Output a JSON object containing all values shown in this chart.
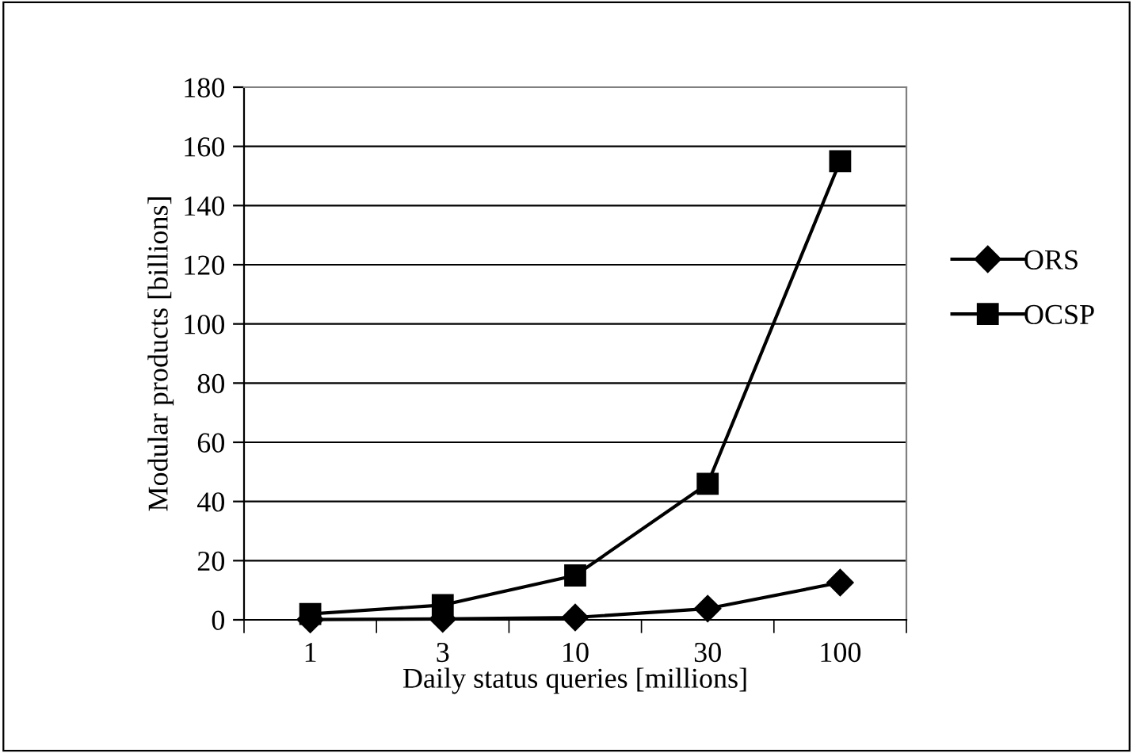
{
  "chart_data": {
    "type": "line",
    "xlabel": "Daily status queries [millions]",
    "ylabel": "Modular products [billions]",
    "categories": [
      "1",
      "3",
      "10",
      "30",
      "100"
    ],
    "series": [
      {
        "name": "ORS",
        "color": "#000000",
        "marker": "diamond",
        "values": [
          0.1,
          0.3,
          0.8,
          3.8,
          12.6
        ]
      },
      {
        "name": "OCSP",
        "color": "#000000",
        "marker": "square",
        "values": [
          2,
          5,
          15,
          46,
          155
        ]
      }
    ],
    "ylim": [
      0,
      180
    ],
    "yticks": [
      0,
      20,
      40,
      60,
      80,
      100,
      120,
      140,
      160,
      180
    ],
    "grid": "y",
    "legend": "right",
    "line_style": "solid"
  }
}
